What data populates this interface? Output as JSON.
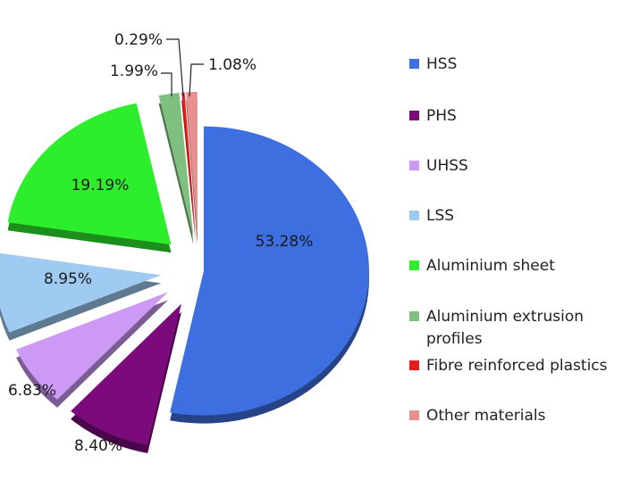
{
  "chart_data": {
    "type": "pie",
    "title": "",
    "legend_position": "right",
    "slices": [
      {
        "name": "HSS",
        "value": 53.28,
        "label": "53.28%",
        "color": "#3d6fe0"
      },
      {
        "name": "PHS",
        "value": 8.4,
        "label": "8.40%",
        "color": "#7b0a7b"
      },
      {
        "name": "UHSS",
        "value": 6.83,
        "label": "6.83%",
        "color": "#cc99f5"
      },
      {
        "name": "LSS",
        "value": 8.95,
        "label": "8.95%",
        "color": "#9fcaf2"
      },
      {
        "name": "Aluminium sheet",
        "value": 19.19,
        "label": "19.19%",
        "color": "#2ded2d"
      },
      {
        "name": "Aluminium extrusion profiles",
        "value": 1.99,
        "label": "1.99%",
        "color": "#7fbf7f"
      },
      {
        "name": "Fibre reinforced plastics",
        "value": 0.29,
        "label": "0.29%",
        "color": "#e81c1c"
      },
      {
        "name": "Other materials",
        "value": 1.08,
        "label": "1.08%",
        "color": "#e88f8f"
      }
    ]
  },
  "legend": {
    "items": [
      {
        "label": "HSS",
        "color": "#3d6fe0"
      },
      {
        "label": "PHS",
        "color": "#7b0a7b"
      },
      {
        "label": "UHSS",
        "color": "#cc99f5"
      },
      {
        "label": "LSS",
        "color": "#9fcaf2"
      },
      {
        "label": "Aluminium sheet",
        "color": "#2ded2d"
      },
      {
        "label": "Aluminium extrusion profiles",
        "color": "#7fbf7f"
      },
      {
        "label": "Fibre reinforced plastics",
        "color": "#e81c1c"
      },
      {
        "label": "Other materials",
        "color": "#e88f8f"
      }
    ]
  }
}
